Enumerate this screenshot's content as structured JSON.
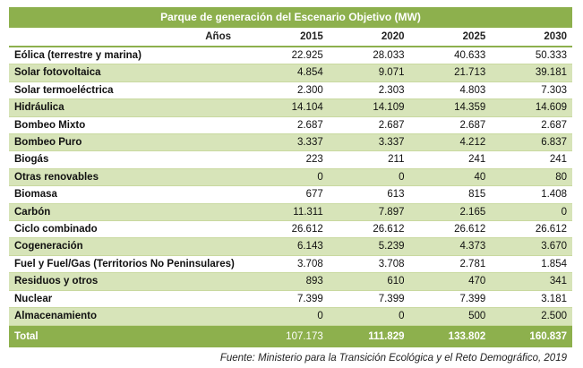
{
  "title": "Parque de generación del Escenario Objetivo (MW)",
  "header": {
    "label": "Años",
    "years": [
      "2015",
      "2020",
      "2025",
      "2030"
    ]
  },
  "rows": [
    {
      "name": "Eólica (terrestre y marina)",
      "values": [
        "22.925",
        "28.033",
        "40.633",
        "50.333"
      ]
    },
    {
      "name": "Solar fotovoltaica",
      "values": [
        "4.854",
        "9.071",
        "21.713",
        "39.181"
      ]
    },
    {
      "name": "Solar termoeléctrica",
      "values": [
        "2.300",
        "2.303",
        "4.803",
        "7.303"
      ]
    },
    {
      "name": "Hidráulica",
      "values": [
        "14.104",
        "14.109",
        "14.359",
        "14.609"
      ]
    },
    {
      "name": "Bombeo Mixto",
      "values": [
        "2.687",
        "2.687",
        "2.687",
        "2.687"
      ]
    },
    {
      "name": "Bombeo Puro",
      "values": [
        "3.337",
        "3.337",
        "4.212",
        "6.837"
      ]
    },
    {
      "name": "Biogás",
      "values": [
        "223",
        "211",
        "241",
        "241"
      ]
    },
    {
      "name": "Otras renovables",
      "values": [
        "0",
        "0",
        "40",
        "80"
      ]
    },
    {
      "name": "Biomasa",
      "values": [
        "677",
        "613",
        "815",
        "1.408"
      ]
    },
    {
      "name": "Carbón",
      "values": [
        "11.311",
        "7.897",
        "2.165",
        "0"
      ]
    },
    {
      "name": "Ciclo combinado",
      "values": [
        "26.612",
        "26.612",
        "26.612",
        "26.612"
      ]
    },
    {
      "name": "Cogeneración",
      "values": [
        "6.143",
        "5.239",
        "4.373",
        "3.670"
      ]
    },
    {
      "name": "Fuel y Fuel/Gas (Territorios No Peninsulares)",
      "values": [
        "3.708",
        "3.708",
        "2.781",
        "1.854"
      ]
    },
    {
      "name": "Residuos y otros",
      "values": [
        "893",
        "610",
        "470",
        "341"
      ]
    },
    {
      "name": "Nuclear",
      "values": [
        "7.399",
        "7.399",
        "7.399",
        "3.181"
      ]
    },
    {
      "name": "Almacenamiento",
      "values": [
        "0",
        "0",
        "500",
        "2.500"
      ]
    }
  ],
  "total": {
    "name": "Total",
    "values": [
      "107.173",
      "111.829",
      "133.802",
      "160.837"
    ]
  },
  "source": "Fuente: Ministerio para la Transición Ecológica y el Reto Demográfico, 2019",
  "colors": {
    "header_green": "#8db04d",
    "row_alt_green": "#d7e4b9"
  }
}
